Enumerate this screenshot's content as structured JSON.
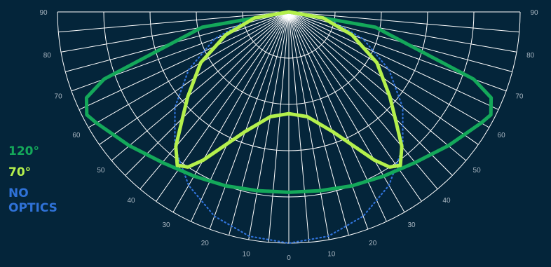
{
  "chart_data": {
    "type": "polar",
    "title": "",
    "angle_labels_left": [
      "90",
      "80",
      "70",
      "60",
      "50",
      "40",
      "30",
      "20",
      "10"
    ],
    "angle_labels_right": [
      "90",
      "80",
      "70",
      "60",
      "50",
      "40",
      "30",
      "20",
      "10"
    ],
    "angle_label_bottom": "0",
    "angle_range": [
      0,
      90
    ],
    "radial_rings": 5,
    "grid": true,
    "legend_position": "left",
    "series": [
      {
        "name": "120°",
        "color": "#14a85a",
        "angles": [
          0,
          10,
          20,
          30,
          40,
          50,
          60,
          63,
          67,
          70,
          80,
          90
        ],
        "values": [
          0.78,
          0.785,
          0.8,
          0.82,
          0.85,
          0.9,
          0.96,
          0.98,
          0.95,
          0.85,
          0.38,
          0
        ]
      },
      {
        "name": "70°",
        "color": "#b4f04c",
        "angles": [
          0,
          10,
          20,
          30,
          33,
          36,
          40,
          45,
          50,
          60,
          70,
          80,
          90
        ],
        "values": [
          0.44,
          0.46,
          0.55,
          0.74,
          0.8,
          0.82,
          0.76,
          0.65,
          0.57,
          0.44,
          0.29,
          0.15,
          0
        ]
      },
      {
        "name": "NO OPTICS",
        "color": "#2f72d8",
        "angles": [
          0,
          10,
          20,
          30,
          40,
          50,
          60,
          70,
          80,
          90
        ],
        "values": [
          1,
          0.985,
          0.94,
          0.866,
          0.766,
          0.643,
          0.5,
          0.342,
          0.174,
          0
        ]
      }
    ]
  },
  "legend": [
    {
      "label": "120°",
      "color": "#14a85a"
    },
    {
      "label": "70°",
      "color": "#b4f04c"
    },
    {
      "label": "NO\nOPTICS",
      "color": "#2f72d8"
    }
  ]
}
